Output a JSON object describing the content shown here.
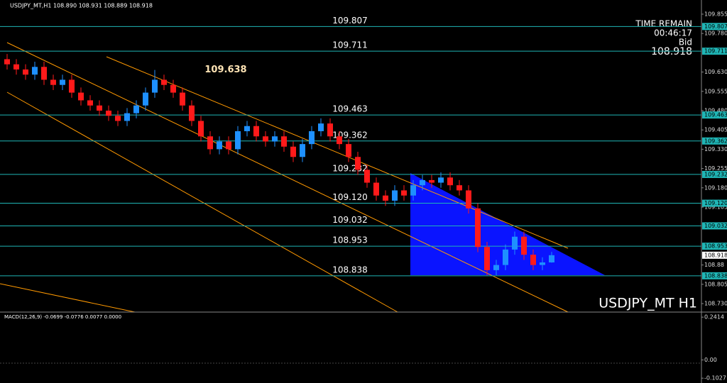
{
  "chart_data": {
    "type": "candlestick",
    "title": "USDJPY_MT,H1  108.890 108.931 108.889 108.918",
    "symbol_label": "USDJPY_MT H1",
    "info": [
      "TIME REMAIN",
      "00:46:17",
      "Bid",
      "108.918"
    ],
    "bid": 108.918,
    "high_label": 109.638,
    "up_color": "#1e90ff",
    "down_color": "#ff1a1a",
    "level_color": "#1fb5b5",
    "ylim": [
      108.697,
      109.91
    ],
    "yticks": [
      {
        "value": 109.855,
        "label": "109.855"
      },
      {
        "value": 109.78,
        "label": "109.780"
      },
      {
        "value": 109.63,
        "label": "109.630"
      },
      109.555,
      {
        "value": 109.48,
        "label": "109.480"
      },
      109.405,
      {
        "value": 109.33,
        "label": "109.330"
      },
      109.255,
      {
        "value": 109.18,
        "label": "109.180"
      },
      109.105,
      108.88,
      108.805,
      {
        "value": 108.73,
        "label": "108.730"
      }
    ],
    "levels": [
      109.807,
      109.711,
      109.463,
      109.362,
      109.232,
      {
        "value": 109.12,
        "label": "109.120"
      },
      109.032,
      108.953,
      108.838
    ],
    "candles": [
      [
        109.68,
        109.7,
        109.64,
        109.66
      ],
      [
        109.66,
        109.68,
        109.62,
        109.64
      ],
      [
        109.64,
        109.66,
        109.6,
        109.62
      ],
      [
        109.62,
        109.67,
        109.6,
        109.65
      ],
      [
        109.65,
        109.67,
        109.58,
        109.6
      ],
      [
        109.6,
        109.62,
        109.56,
        109.58
      ],
      [
        109.58,
        109.62,
        109.56,
        109.6
      ],
      [
        109.6,
        109.62,
        109.53,
        109.55
      ],
      [
        109.55,
        109.57,
        109.5,
        109.52
      ],
      [
        109.52,
        109.54,
        109.48,
        109.5
      ],
      [
        109.5,
        109.52,
        109.46,
        109.48
      ],
      [
        109.48,
        109.5,
        109.44,
        109.46
      ],
      [
        109.46,
        109.48,
        109.42,
        109.44
      ],
      [
        109.44,
        109.49,
        109.42,
        109.47
      ],
      [
        109.47,
        109.52,
        109.45,
        109.5
      ],
      [
        109.5,
        109.57,
        109.48,
        109.55
      ],
      [
        109.55,
        109.638,
        109.53,
        109.6
      ],
      [
        109.6,
        109.62,
        109.56,
        109.58
      ],
      [
        109.58,
        109.6,
        109.53,
        109.55
      ],
      [
        109.55,
        109.57,
        109.48,
        109.5
      ],
      [
        109.5,
        109.52,
        109.42,
        109.44
      ],
      [
        109.44,
        109.46,
        109.36,
        109.38
      ],
      [
        109.38,
        109.4,
        109.31,
        109.33
      ],
      [
        109.33,
        109.38,
        109.31,
        109.36
      ],
      [
        109.36,
        109.38,
        109.31,
        109.33
      ],
      [
        109.33,
        109.42,
        109.31,
        109.4
      ],
      [
        109.4,
        109.44,
        109.38,
        109.42
      ],
      [
        109.42,
        109.44,
        109.36,
        109.38
      ],
      [
        109.38,
        109.4,
        109.34,
        109.36
      ],
      [
        109.36,
        109.4,
        109.34,
        109.38
      ],
      [
        109.38,
        109.4,
        109.32,
        109.34
      ],
      [
        109.34,
        109.36,
        109.28,
        109.3
      ],
      [
        109.3,
        109.37,
        109.28,
        109.35
      ],
      [
        109.35,
        109.42,
        109.33,
        109.4
      ],
      [
        109.4,
        109.45,
        109.38,
        109.43
      ],
      [
        109.43,
        109.45,
        109.36,
        109.38
      ],
      [
        109.38,
        109.4,
        109.33,
        109.35
      ],
      [
        109.35,
        109.37,
        109.28,
        109.3
      ],
      [
        109.3,
        109.32,
        109.23,
        109.25
      ],
      [
        109.25,
        109.27,
        109.18,
        109.2
      ],
      [
        109.2,
        109.22,
        109.13,
        109.15
      ],
      [
        109.15,
        109.17,
        109.11,
        109.13
      ],
      [
        109.13,
        109.19,
        109.11,
        109.17
      ],
      [
        109.17,
        109.19,
        109.13,
        109.15
      ],
      [
        109.15,
        109.21,
        109.13,
        109.19
      ],
      [
        109.19,
        109.23,
        109.17,
        109.21
      ],
      [
        109.21,
        109.23,
        109.18,
        109.2
      ],
      [
        109.2,
        109.24,
        109.18,
        109.22
      ],
      [
        109.22,
        109.24,
        109.17,
        109.19
      ],
      [
        109.19,
        109.21,
        109.15,
        109.17
      ],
      [
        109.17,
        109.19,
        109.08,
        109.1
      ],
      [
        109.1,
        109.12,
        108.93,
        108.95
      ],
      [
        108.95,
        108.97,
        108.84,
        108.86
      ],
      [
        108.86,
        108.9,
        108.84,
        108.88
      ],
      [
        108.88,
        108.96,
        108.86,
        108.94
      ],
      [
        108.94,
        109.01,
        108.92,
        108.99
      ],
      [
        108.99,
        109.01,
        108.9,
        108.92
      ],
      [
        108.92,
        108.94,
        108.86,
        108.88
      ],
      [
        108.88,
        108.91,
        108.86,
        108.89
      ],
      [
        108.89,
        108.931,
        108.889,
        108.918
      ]
    ],
    "macd_label": "MACD(12,26,9) -0.0699 -0.0776 0.0077 0.0000",
    "macd_ylim": [
      -0.13,
      0.27
    ],
    "macd_yticks": [
      0.2414,
      {
        "value": 0,
        "label": "0.00"
      },
      -0.1027
    ]
  }
}
